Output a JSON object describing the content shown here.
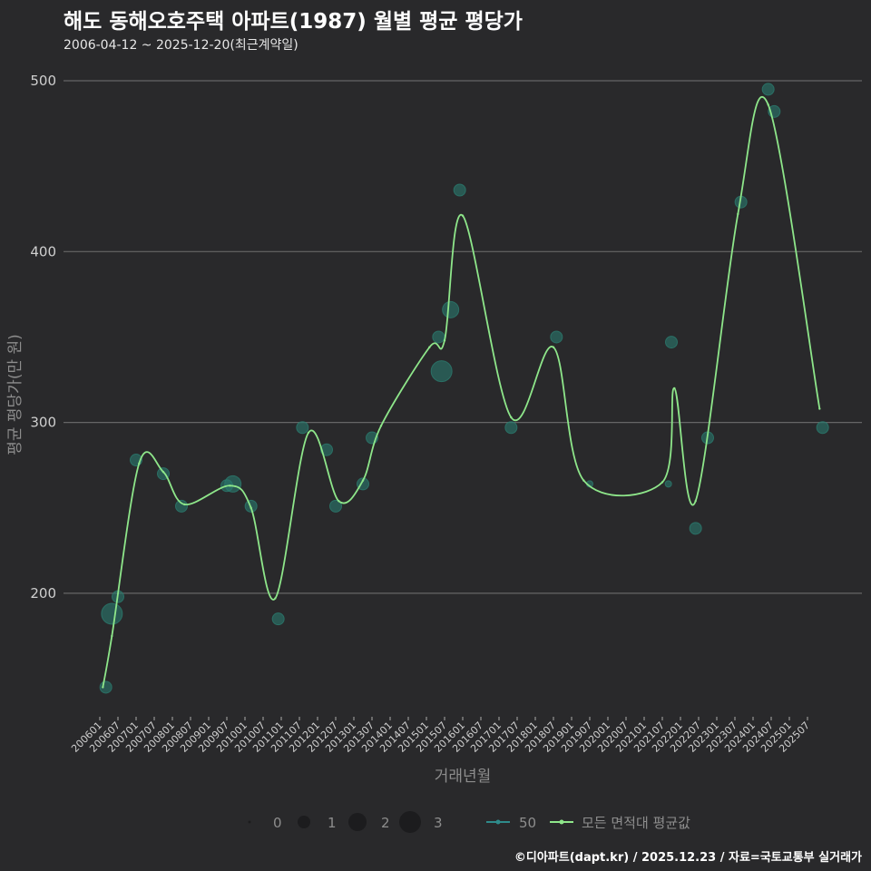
{
  "title": "해도 동해오호주택 아파트(1987) 월별 평균 평당가",
  "subtitle": "2006-04-12 ~ 2025-12-20(최근계약일)",
  "footer": "©디아파트(dapt.kr) / 2025.12.23 / 자료=국토교통부 실거래가",
  "colors": {
    "bubble": "#2a7a6e",
    "line": "#8ee68a",
    "series50": "#2e8b8b"
  },
  "chart_data": {
    "type": "line",
    "xlabel": "거래년월",
    "ylabel": "평균 평당가(만 원)",
    "ylim": [
      130,
      510
    ],
    "yticks": [
      200,
      300,
      400,
      500
    ],
    "xticks": [
      "200601",
      "200607",
      "200701",
      "200707",
      "200801",
      "200807",
      "200901",
      "200907",
      "201001",
      "201007",
      "201101",
      "201107",
      "201201",
      "201207",
      "201301",
      "201307",
      "201401",
      "201407",
      "201501",
      "201507",
      "201601",
      "201607",
      "201701",
      "201707",
      "201801",
      "201807",
      "201901",
      "201907",
      "202001",
      "202007",
      "202101",
      "202107",
      "202201",
      "202207",
      "202301",
      "202307",
      "202401",
      "202407",
      "202501",
      "202507"
    ],
    "grid": true,
    "legend": {
      "size_title": "",
      "sizes": [
        {
          "label": "0",
          "value": 0
        },
        {
          "label": "1",
          "value": 1
        },
        {
          "label": "2",
          "value": 2
        },
        {
          "label": "3",
          "value": 3
        }
      ],
      "series": [
        "50",
        "모든 면적대 평균값"
      ],
      "placement": "bottom"
    },
    "series": [
      {
        "name": "모든 면적대 평균값",
        "type": "line",
        "points": [
          [
            "2006-02",
            145
          ],
          [
            "2006-05",
            175
          ],
          [
            "2007-02",
            276
          ],
          [
            "2007-10",
            271
          ],
          [
            "2008-05",
            252
          ],
          [
            "2009-08",
            263
          ],
          [
            "2010-03",
            250
          ],
          [
            "2010-11",
            197
          ],
          [
            "2011-10",
            294
          ],
          [
            "2012-08",
            254
          ],
          [
            "2013-04",
            266
          ],
          [
            "2013-10",
            298
          ],
          [
            "2015-02",
            344
          ],
          [
            "2015-07",
            348
          ],
          [
            "2016-01",
            421
          ],
          [
            "2017-05",
            303
          ],
          [
            "2018-07",
            344
          ],
          [
            "2019-05",
            266
          ],
          [
            "2021-07",
            265
          ],
          [
            "2021-11",
            320
          ],
          [
            "2022-06",
            254
          ],
          [
            "2023-08",
            422
          ],
          [
            "2024-06",
            486
          ],
          [
            "2025-11",
            308
          ]
        ]
      },
      {
        "name": "50",
        "type": "scatter",
        "points": [
          [
            "2006-03",
            145,
            1
          ],
          [
            "2006-05",
            188,
            3
          ],
          [
            "2006-07",
            198,
            1
          ],
          [
            "2007-01",
            278,
            1
          ],
          [
            "2007-10",
            270,
            1
          ],
          [
            "2008-04",
            251,
            1
          ],
          [
            "2009-07",
            263,
            1
          ],
          [
            "2009-09",
            264,
            2
          ],
          [
            "2010-03",
            251,
            1
          ],
          [
            "2010-12",
            185,
            1
          ],
          [
            "2011-08",
            297,
            1
          ],
          [
            "2012-04",
            284,
            1
          ],
          [
            "2012-07",
            251,
            1
          ],
          [
            "2013-04",
            264,
            1
          ],
          [
            "2013-07",
            291,
            1
          ],
          [
            "2015-05",
            350,
            1
          ],
          [
            "2015-06",
            330,
            3
          ],
          [
            "2015-09",
            366,
            2
          ],
          [
            "2015-12",
            436,
            1
          ],
          [
            "2017-05",
            297,
            1
          ],
          [
            "2018-08",
            350,
            1
          ],
          [
            "2019-07",
            264,
            0.5
          ],
          [
            "2021-09",
            264,
            0.5
          ],
          [
            "2021-10",
            347,
            1
          ],
          [
            "2022-06",
            238,
            1
          ],
          [
            "2022-10",
            291,
            1
          ],
          [
            "2023-09",
            429,
            1
          ],
          [
            "2024-06",
            495,
            1
          ],
          [
            "2024-08",
            482,
            1
          ],
          [
            "2025-12",
            297,
            1
          ]
        ]
      }
    ]
  }
}
